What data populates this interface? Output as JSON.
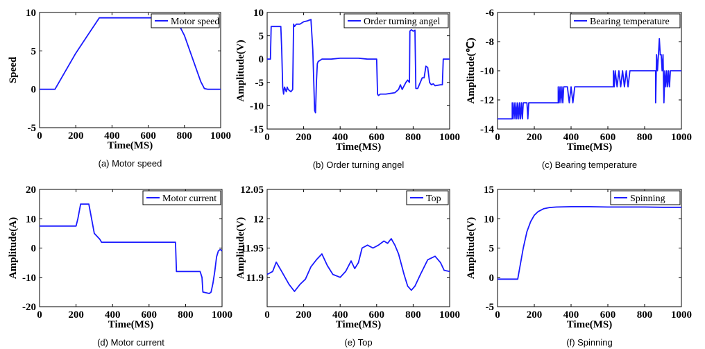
{
  "line_color": "#1a1aff",
  "chart_data": [
    {
      "type": "line",
      "caption": "(a) Motor speed",
      "xlabel": "Time(MS)",
      "ylabel": "Speed",
      "xlim": [
        0,
        1000
      ],
      "ylim": [
        -5,
        10
      ],
      "xticks": [
        0,
        200,
        400,
        600,
        800,
        1000
      ],
      "xtick_labels": [
        "0",
        "200",
        "400",
        "600",
        "800",
        "1000"
      ],
      "yticks": [
        -5,
        0,
        5,
        10
      ],
      "ytick_labels": [
        "-5",
        "0",
        "5",
        "10"
      ],
      "legend": "top-right",
      "series": [
        {
          "name": "Motor speed",
          "x": [
            0,
            85,
            200,
            330,
            345,
            750,
            800,
            890,
            910,
            930,
            1000
          ],
          "y": [
            0,
            0,
            4.7,
            9.3,
            9.3,
            9.3,
            7.0,
            1.0,
            0.1,
            0,
            0
          ]
        }
      ]
    },
    {
      "type": "line",
      "caption": "(b) Order turning angel",
      "xlabel": "Time(MS)",
      "ylabel": "Amplitude(V)",
      "xlim": [
        0,
        1000
      ],
      "ylim": [
        -15,
        10
      ],
      "xticks": [
        0,
        200,
        400,
        600,
        800,
        1000
      ],
      "xtick_labels": [
        "0",
        "200",
        "400",
        "600",
        "800",
        "1000"
      ],
      "yticks": [
        -15,
        -10,
        -5,
        0,
        5,
        10
      ],
      "ytick_labels": [
        "-15",
        "-10",
        "-5",
        "0",
        "5",
        "10"
      ],
      "legend": "top-right",
      "series": [
        {
          "name": "Order turning angel",
          "x": [
            0,
            18,
            22,
            75,
            80,
            85,
            90,
            95,
            100,
            105,
            110,
            115,
            130,
            140,
            145,
            150,
            160,
            180,
            200,
            220,
            240,
            250,
            260,
            265,
            270,
            275,
            280,
            300,
            350,
            400,
            450,
            500,
            550,
            580,
            600,
            605,
            610,
            620,
            650,
            700,
            720,
            730,
            740,
            760,
            770,
            780,
            782,
            790,
            800,
            810,
            815,
            825,
            850,
            860,
            870,
            880,
            890,
            900,
            910,
            920,
            950,
            960,
            965,
            1000
          ],
          "y": [
            0,
            0,
            7,
            7,
            2,
            -6,
            -7.5,
            -6,
            -6.5,
            -7,
            -6,
            -6.5,
            -7,
            -6.5,
            7.5,
            7,
            7.5,
            7.5,
            8,
            8.2,
            8.5,
            2,
            -11,
            -11.5,
            -5,
            -1,
            -0.5,
            0,
            0,
            0.2,
            0.2,
            0.2,
            0,
            0,
            0,
            -7.5,
            -7.8,
            -7.5,
            -7.5,
            -7.2,
            -6.5,
            -5.5,
            -6.5,
            -5,
            -4.5,
            -5,
            6,
            6.3,
            6,
            6.2,
            -6.3,
            -6.3,
            -4,
            -4,
            -1.5,
            -1.8,
            -5,
            -5.5,
            -5.3,
            -5.7,
            -5.5,
            -5.5,
            0,
            0
          ]
        }
      ]
    },
    {
      "type": "line",
      "caption": "(c) Bearing temperature",
      "xlabel": "Time(MS)",
      "ylabel": "Amplitude(℃)",
      "xlim": [
        0,
        1000
      ],
      "ylim": [
        -14,
        -6
      ],
      "xticks": [
        0,
        200,
        400,
        600,
        800,
        1000
      ],
      "xtick_labels": [
        "0",
        "200",
        "400",
        "600",
        "800",
        "1000"
      ],
      "yticks": [
        -14,
        -12,
        -10,
        -8,
        -6
      ],
      "ytick_labels": [
        "-14",
        "-12",
        "-10",
        "-8",
        "-6"
      ],
      "legend": "top-right",
      "series": [
        {
          "name": "Bearing temperature",
          "x": [
            0,
            80,
            80,
            85,
            90,
            95,
            100,
            105,
            110,
            115,
            120,
            125,
            130,
            135,
            140,
            150,
            160,
            165,
            170,
            175,
            180,
            330,
            330,
            335,
            340,
            345,
            350,
            355,
            360,
            380,
            390,
            400,
            410,
            420,
            630,
            630,
            635,
            640,
            650,
            660,
            670,
            680,
            690,
            700,
            710,
            720,
            860,
            860,
            865,
            870,
            875,
            880,
            885,
            890,
            895,
            900,
            905,
            910,
            915,
            920,
            925,
            930,
            935,
            940,
            1000
          ],
          "y": [
            -13.3,
            -13.3,
            -12.2,
            -13.3,
            -12.2,
            -13.3,
            -12.2,
            -13.3,
            -12.2,
            -13.3,
            -12.2,
            -13.3,
            -12.2,
            -13.3,
            -12.2,
            -12.2,
            -12.2,
            -13.3,
            -12.2,
            -12.2,
            -12.2,
            -12.2,
            -11.1,
            -12.2,
            -11.1,
            -12.2,
            -11.1,
            -12.2,
            -11.1,
            -11.1,
            -12.2,
            -11.1,
            -12.2,
            -11.1,
            -11.1,
            -10,
            -11.1,
            -10,
            -11.1,
            -10,
            -11.1,
            -10,
            -11.1,
            -10,
            -11.1,
            -10,
            -10,
            -12.2,
            -8.9,
            -10,
            -8.9,
            -7.8,
            -8.9,
            -8.9,
            -10,
            -8.9,
            -12.2,
            -10,
            -11.1,
            -10,
            -11.1,
            -10,
            -11.1,
            -10,
            -10
          ]
        }
      ]
    },
    {
      "type": "line",
      "caption": "(d) Motor current",
      "xlabel": "Time(MS)",
      "ylabel": "Amplitude(A)",
      "xlim": [
        0,
        1000
      ],
      "ylim": [
        -20,
        20
      ],
      "xticks": [
        0,
        200,
        400,
        600,
        800,
        1000
      ],
      "xtick_labels": [
        "0",
        "200",
        "400",
        "600",
        "800",
        "1000"
      ],
      "yticks": [
        -20,
        -10,
        0,
        10,
        20
      ],
      "ytick_labels": [
        "-20",
        "-10",
        "0",
        "10",
        "20"
      ],
      "legend": "top-right",
      "series": [
        {
          "name": "Motor current",
          "x": [
            0,
            200,
            210,
            225,
            270,
            285,
            300,
            330,
            340,
            360,
            400,
            450,
            500,
            550,
            600,
            650,
            700,
            745,
            750,
            880,
            890,
            895,
            930,
            940,
            950,
            960,
            970,
            980,
            990,
            1000
          ],
          "y": [
            7.5,
            7.5,
            10,
            15,
            15,
            10,
            5,
            3,
            2,
            2,
            2,
            2,
            2,
            2,
            2,
            2,
            2,
            2,
            -8,
            -8,
            -10,
            -15,
            -15.5,
            -15,
            -12,
            -8,
            -3,
            -1,
            -0.5,
            -1
          ]
        }
      ]
    },
    {
      "type": "line",
      "caption": "(e) Top",
      "xlabel": "Time(MS)",
      "ylabel": "Amplitude(V)",
      "xlim": [
        0,
        1000
      ],
      "ylim": [
        11.85,
        12.05
      ],
      "xticks": [
        0,
        200,
        400,
        600,
        800,
        1000
      ],
      "xtick_labels": [
        "0",
        "200",
        "400",
        "600",
        "800",
        "1000"
      ],
      "yticks": [
        11.9,
        11.95,
        12,
        12.05
      ],
      "ytick_labels": [
        "11.9",
        "11.95",
        "12",
        "12.05"
      ],
      "legend": "top-right",
      "series": [
        {
          "name": "Top",
          "x": [
            0,
            30,
            50,
            80,
            120,
            150,
            180,
            210,
            240,
            270,
            300,
            330,
            360,
            400,
            430,
            460,
            480,
            500,
            520,
            550,
            580,
            610,
            640,
            660,
            680,
            700,
            720,
            750,
            770,
            790,
            810,
            840,
            880,
            920,
            950,
            970,
            1000
          ],
          "y": [
            11.905,
            11.91,
            11.926,
            11.91,
            11.888,
            11.876,
            11.888,
            11.897,
            11.918,
            11.93,
            11.94,
            11.92,
            11.905,
            11.9,
            11.91,
            11.928,
            11.915,
            11.925,
            11.95,
            11.955,
            11.95,
            11.955,
            11.962,
            11.958,
            11.966,
            11.955,
            11.94,
            11.905,
            11.885,
            11.878,
            11.885,
            11.905,
            11.93,
            11.936,
            11.925,
            11.912,
            11.91
          ]
        }
      ]
    },
    {
      "type": "line",
      "caption": "(f) Spinning",
      "xlabel": "Time(MS)",
      "ylabel": "Amplitude(V)",
      "xlim": [
        0,
        1000
      ],
      "ylim": [
        -5,
        15
      ],
      "xticks": [
        0,
        200,
        400,
        600,
        800,
        1000
      ],
      "xtick_labels": [
        "0",
        "200",
        "400",
        "600",
        "800",
        "1000"
      ],
      "yticks": [
        -5,
        0,
        5,
        10,
        15
      ],
      "ytick_labels": [
        "-5",
        "0",
        "5",
        "10",
        "15"
      ],
      "legend": "top-right",
      "series": [
        {
          "name": "Spinning",
          "x": [
            0,
            110,
            120,
            140,
            160,
            180,
            200,
            220,
            250,
            280,
            320,
            400,
            500,
            600,
            700,
            800,
            900,
            1000
          ],
          "y": [
            -0.3,
            -0.3,
            1.5,
            5,
            7.8,
            9.5,
            10.6,
            11.2,
            11.7,
            11.9,
            12.0,
            12.05,
            12.05,
            12.0,
            12.0,
            12.0,
            11.95,
            11.95
          ]
        }
      ]
    }
  ]
}
